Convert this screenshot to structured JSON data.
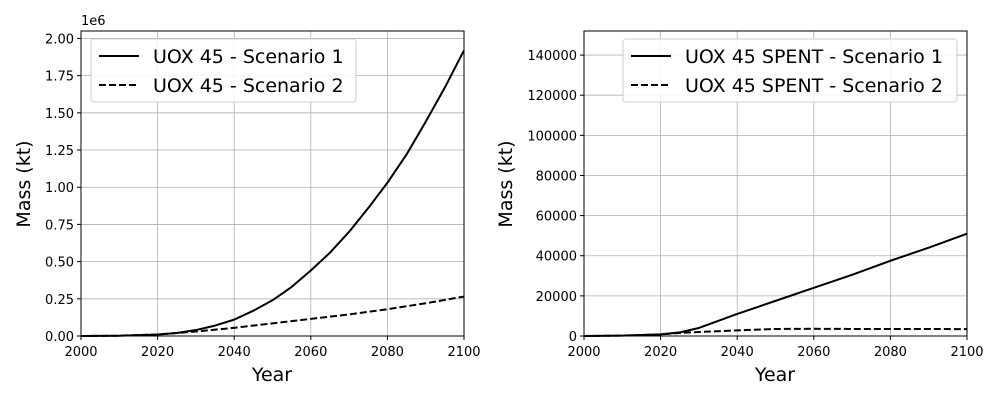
{
  "chart_data": [
    {
      "type": "line",
      "xlabel": "Year",
      "ylabel": "Mass (kt)",
      "y_offset_label": "1e6",
      "xlim": [
        2000,
        2100
      ],
      "ylim": [
        0,
        2.05
      ],
      "x_ticks": [
        "2000",
        "2020",
        "2040",
        "2060",
        "2080",
        "2100"
      ],
      "y_ticks": [
        "0.00",
        "0.25",
        "0.50",
        "0.75",
        "1.00",
        "1.25",
        "1.50",
        "1.75",
        "2.00"
      ],
      "grid": true,
      "legend_position": "upper-left",
      "series": [
        {
          "name": "UOX 45 - Scenario 1",
          "style": "solid",
          "color": "#000000",
          "x": [
            2000,
            2010,
            2020,
            2025,
            2030,
            2035,
            2040,
            2045,
            2050,
            2055,
            2060,
            2065,
            2070,
            2075,
            2080,
            2085,
            2090,
            2095,
            2100
          ],
          "values": [
            0,
            0.002,
            0.01,
            0.02,
            0.04,
            0.07,
            0.11,
            0.17,
            0.24,
            0.33,
            0.44,
            0.56,
            0.7,
            0.86,
            1.03,
            1.22,
            1.44,
            1.67,
            1.92
          ]
        },
        {
          "name": "UOX 45 - Scenario 2",
          "style": "dashed",
          "color": "#000000",
          "x": [
            2000,
            2010,
            2020,
            2025,
            2030,
            2040,
            2050,
            2060,
            2070,
            2080,
            2090,
            2100
          ],
          "values": [
            0,
            0.002,
            0.01,
            0.02,
            0.03,
            0.055,
            0.085,
            0.115,
            0.145,
            0.18,
            0.22,
            0.265
          ]
        }
      ]
    },
    {
      "type": "line",
      "xlabel": "Year",
      "ylabel": "Mass (kt)",
      "xlim": [
        2000,
        2100
      ],
      "ylim": [
        0,
        152000
      ],
      "x_ticks": [
        "2000",
        "2020",
        "2040",
        "2060",
        "2080",
        "2100"
      ],
      "y_ticks": [
        "0",
        "20000",
        "40000",
        "60000",
        "80000",
        "100000",
        "120000",
        "140000"
      ],
      "grid": true,
      "legend_position": "upper-right",
      "series": [
        {
          "name": "UOX 45 SPENT - Scenario 1",
          "style": "solid",
          "color": "#000000",
          "x": [
            2000,
            2010,
            2020,
            2025,
            2030,
            2040,
            2050,
            2060,
            2070,
            2080,
            2090,
            2100
          ],
          "values": [
            0,
            200,
            800,
            1800,
            4000,
            11000,
            17500,
            24000,
            30500,
            37500,
            44000,
            51000
          ]
        },
        {
          "name": "UOX 45 SPENT - Scenario 2",
          "style": "dashed",
          "color": "#000000",
          "x": [
            2000,
            2010,
            2020,
            2025,
            2030,
            2040,
            2050,
            2060,
            2070,
            2080,
            2090,
            2100
          ],
          "values": [
            0,
            200,
            800,
            1500,
            2000,
            2800,
            3500,
            3600,
            3500,
            3500,
            3500,
            3400
          ]
        }
      ]
    }
  ]
}
